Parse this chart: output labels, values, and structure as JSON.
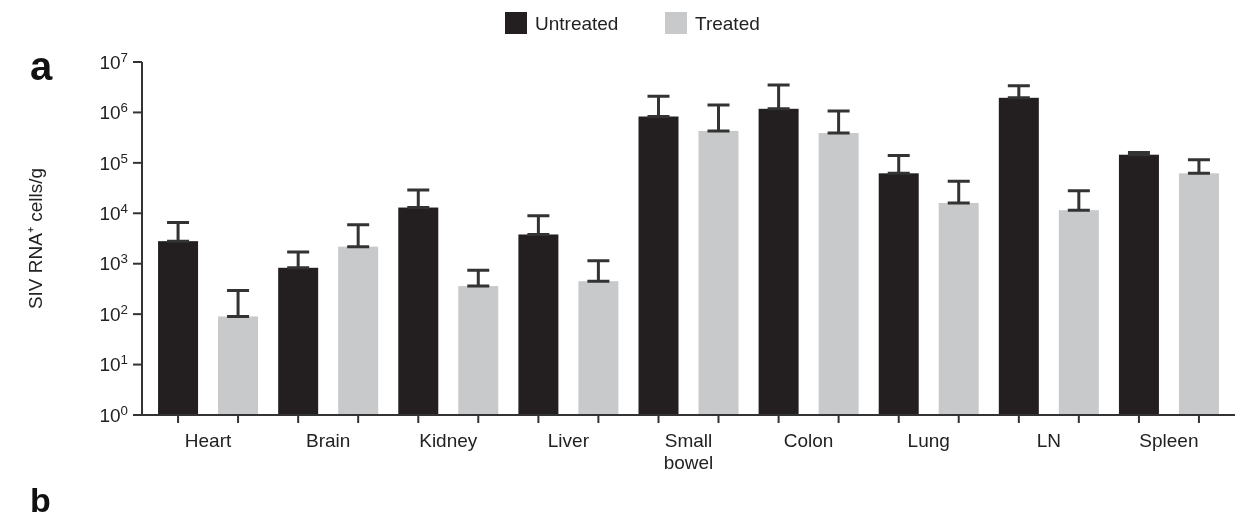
{
  "chart_data": {
    "type": "bar",
    "ylabel": "SIV RNA⁺ cells/g",
    "categories": [
      "Heart",
      "Brain",
      "Kidney",
      "Liver",
      "Small bowel",
      "Colon",
      "Lung",
      "LN",
      "Spleen"
    ],
    "series": [
      {
        "name": "Untreated",
        "color": "#231f20",
        "values": [
          2800,
          830,
          13000,
          3800,
          830000,
          1180000,
          62000,
          1950000,
          145000
        ],
        "errors": [
          [
            2800,
            6600
          ],
          [
            830,
            1700
          ],
          [
            13000,
            29000
          ],
          [
            3800,
            8900
          ],
          [
            830000,
            2100000
          ],
          [
            1180000,
            3500000
          ],
          [
            62000,
            140000
          ],
          [
            1950000,
            3400000
          ],
          [
            145000,
            160000
          ]
        ]
      },
      {
        "name": "Treated",
        "color": "#c8c9cb",
        "values": [
          90,
          2180,
          360,
          450,
          430000,
          390000,
          16000,
          11500,
          62000
        ],
        "errors": [
          [
            90,
            295
          ],
          [
            2180,
            5900
          ],
          [
            360,
            740
          ],
          [
            450,
            1150
          ],
          [
            430000,
            1400000
          ],
          [
            390000,
            1070000
          ],
          [
            16000,
            43000
          ],
          [
            11500,
            28000
          ],
          [
            62000,
            115000
          ]
        ]
      }
    ],
    "log": true,
    "ylim": [
      1,
      10000000
    ],
    "yticks": [
      {
        "value": 1,
        "label": "10$^{0}$"
      },
      {
        "value": 10,
        "label": "10$^{1}$"
      },
      {
        "value": 100,
        "label": "10$^{2}$"
      },
      {
        "value": 1000,
        "label": "10$^{3}$"
      },
      {
        "value": 10000,
        "label": "10$^{4}$"
      },
      {
        "value": 100000,
        "label": "10$^{5}$"
      },
      {
        "value": 1000000,
        "label": "10$^{6}$"
      },
      {
        "value": 10000000,
        "label": "10$^{7}$"
      }
    ],
    "legend": "top",
    "grid": false,
    "annotations": [
      "a",
      "b"
    ]
  }
}
